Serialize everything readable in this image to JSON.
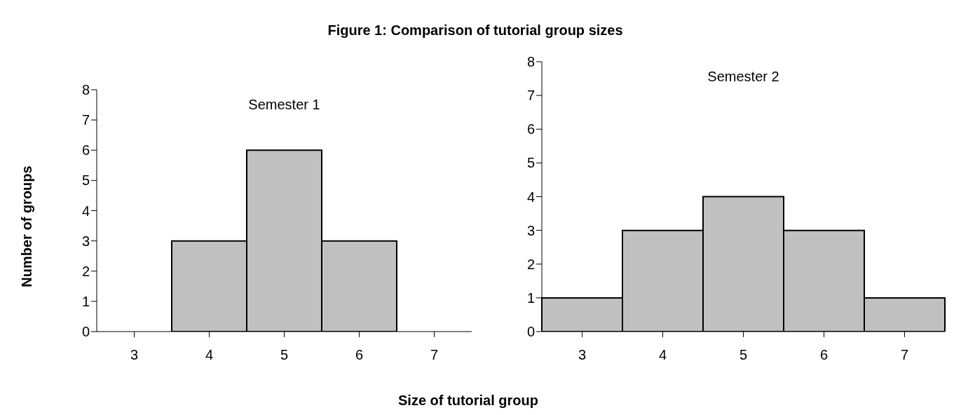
{
  "chart_data": [
    {
      "type": "bar",
      "title": "Figure 1: Comparison of tutorial group sizes",
      "subtitle": "Semester 1",
      "xlabel": "Size of tutorial group",
      "ylabel": "Number of groups",
      "categories": [
        "3",
        "4",
        "5",
        "6",
        "7"
      ],
      "values": [
        0,
        3,
        6,
        3,
        0
      ],
      "color": "#c0c0c0",
      "ylim": [
        0,
        8
      ],
      "yticks": [
        0,
        1,
        2,
        3,
        4,
        5,
        6,
        7,
        8
      ],
      "grid": false
    },
    {
      "type": "bar",
      "subtitle": "Semester 2",
      "categories": [
        "3",
        "4",
        "5",
        "6",
        "7"
      ],
      "values": [
        1,
        3,
        4,
        3,
        1
      ],
      "color": "#c0c0c0",
      "ylim": [
        0,
        8
      ],
      "yticks": [
        0,
        1,
        2,
        3,
        4,
        5,
        6,
        7,
        8
      ],
      "grid": false
    }
  ]
}
